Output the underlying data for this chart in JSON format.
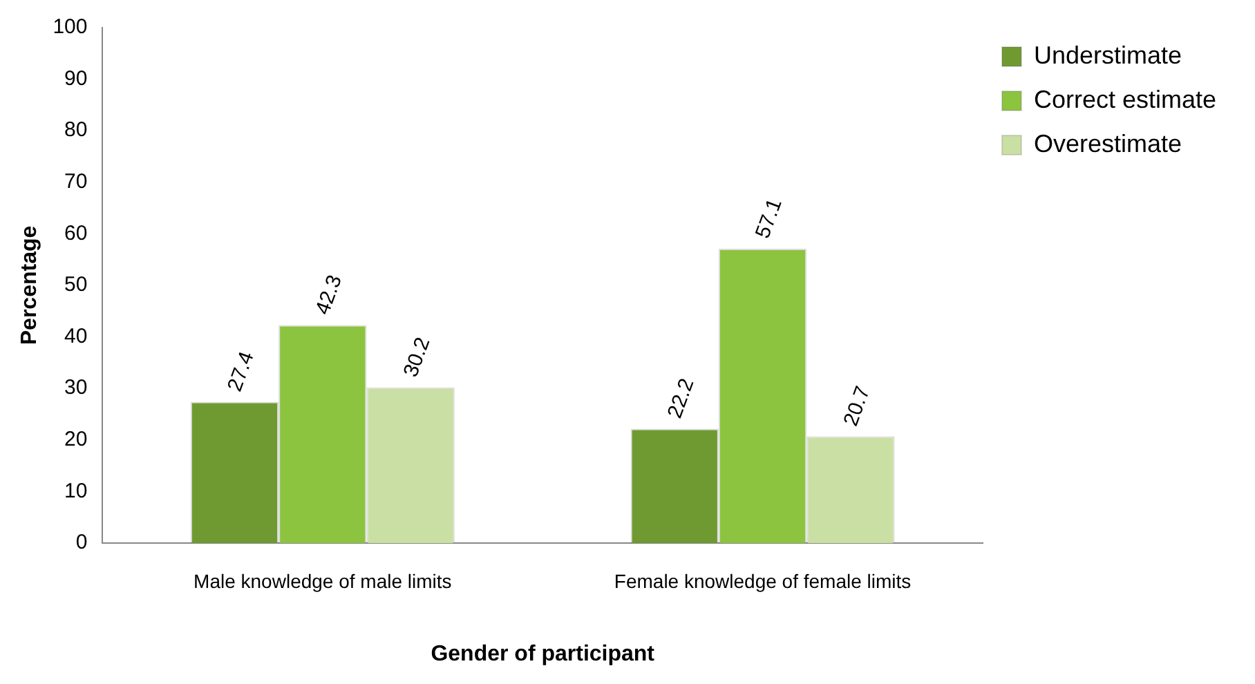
{
  "chart_data": {
    "type": "bar",
    "xlabel": "Gender of participant",
    "ylabel": "Percentage",
    "categories": [
      "Male knowledge of male limits",
      "Female knowledge of female limits"
    ],
    "series": [
      {
        "name": "Understimate",
        "color": "#6f9a32",
        "values": [
          27.4,
          22.2
        ]
      },
      {
        "name": "Correct estimate",
        "color": "#8cc43f",
        "values": [
          42.3,
          57.1
        ]
      },
      {
        "name": "Overestimate",
        "color": "#cadfa3",
        "values": [
          30.2,
          20.7
        ]
      }
    ],
    "ylim": [
      0,
      100
    ],
    "yticks": [
      0,
      10,
      20,
      30,
      40,
      50,
      60,
      70,
      80,
      90,
      100
    ],
    "grid": false,
    "legend": "top right",
    "data_labels": true
  }
}
